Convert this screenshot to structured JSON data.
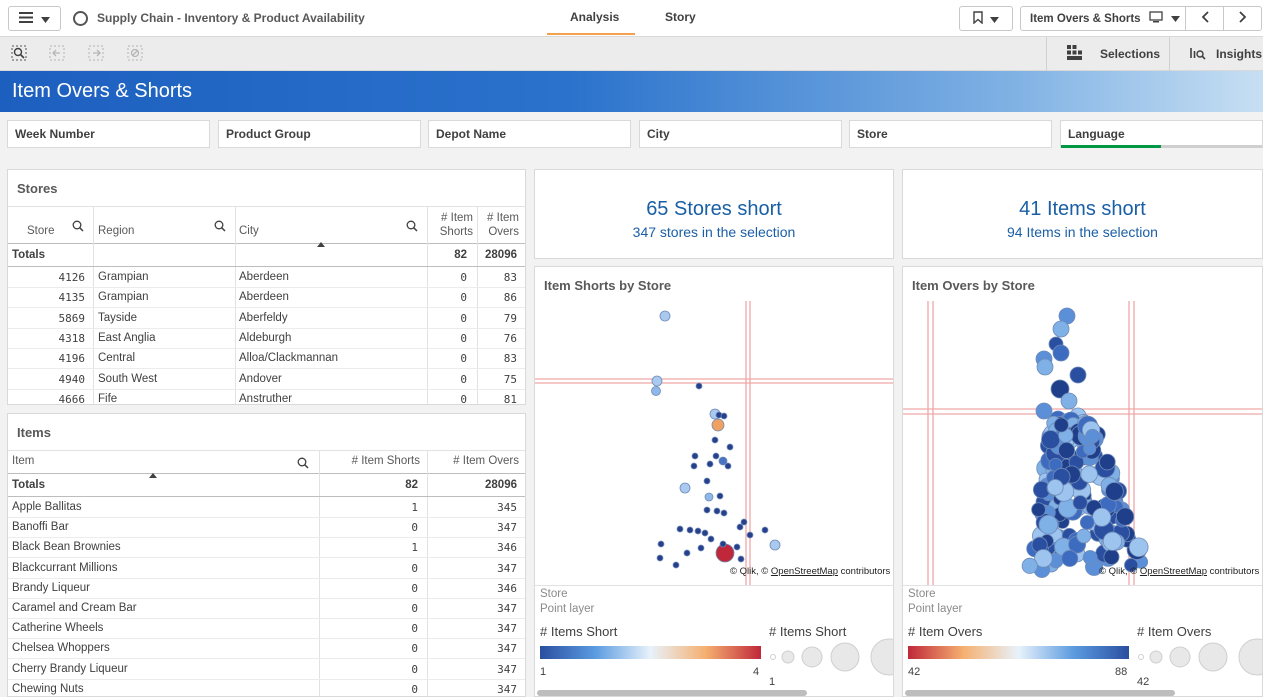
{
  "app": {
    "title": "Supply Chain - Inventory & Product Availability",
    "tabs": [
      "Analysis",
      "Story"
    ],
    "active_tab": "Analysis",
    "current_sheet": "Item Overs & Shorts"
  },
  "toolbar": {
    "selections_label": "Selections",
    "insights_label": "Insights"
  },
  "sheet": {
    "title": "Item Overs & Shorts"
  },
  "filters": [
    "Week Number",
    "Product Group",
    "Depot Name",
    "City",
    "Store",
    "Language"
  ],
  "stores_table": {
    "title": "Stores",
    "headers": {
      "store": "Store",
      "region": "Region",
      "city": "City",
      "shorts": "# Item Shorts",
      "overs": "# Item Overs"
    },
    "totals": {
      "label": "Totals",
      "shorts": "82",
      "overs": "28096"
    },
    "rows": [
      {
        "store": "4126",
        "region": "Grampian",
        "city": "Aberdeen",
        "shorts": "0",
        "overs": "83"
      },
      {
        "store": "4135",
        "region": "Grampian",
        "city": "Aberdeen",
        "shorts": "0",
        "overs": "86"
      },
      {
        "store": "5869",
        "region": "Tayside",
        "city": "Aberfeldy",
        "shorts": "0",
        "overs": "79"
      },
      {
        "store": "4318",
        "region": "East Anglia",
        "city": "Aldeburgh",
        "shorts": "0",
        "overs": "76"
      },
      {
        "store": "4196",
        "region": "Central",
        "city": "Alloa/Clackmannan",
        "shorts": "0",
        "overs": "83"
      },
      {
        "store": "4940",
        "region": "South West",
        "city": "Andover",
        "shorts": "0",
        "overs": "75"
      },
      {
        "store": "4666",
        "region": "Fife",
        "city": "Anstruther",
        "shorts": "0",
        "overs": "81"
      }
    ]
  },
  "items_table": {
    "title": "Items",
    "headers": {
      "item": "Item",
      "shorts": "# Item Shorts",
      "overs": "# Item Overs"
    },
    "totals": {
      "label": "Totals",
      "shorts": "82",
      "overs": "28096"
    },
    "rows": [
      {
        "item": "Apple Ballitas",
        "shorts": "1",
        "overs": "345"
      },
      {
        "item": "Banoffi Bar",
        "shorts": "0",
        "overs": "347"
      },
      {
        "item": "Black Bean Brownies",
        "shorts": "1",
        "overs": "346"
      },
      {
        "item": "Blackcurrant Millions",
        "shorts": "0",
        "overs": "347"
      },
      {
        "item": "Brandy Liqueur",
        "shorts": "0",
        "overs": "346"
      },
      {
        "item": "Caramel and Cream Bar",
        "shorts": "0",
        "overs": "347"
      },
      {
        "item": "Catherine Wheels",
        "shorts": "0",
        "overs": "347"
      },
      {
        "item": "Chelsea Whoppers",
        "shorts": "0",
        "overs": "347"
      },
      {
        "item": "Cherry Brandy Liqueur",
        "shorts": "0",
        "overs": "347"
      },
      {
        "item": "Chewing Nuts",
        "shorts": "0",
        "overs": "347"
      }
    ]
  },
  "kpi_stores": {
    "main": "65 Stores short",
    "sub": "347 stores in the selection"
  },
  "kpi_items": {
    "main": "41 Items short",
    "sub": "94 Items in the selection"
  },
  "map_shorts": {
    "title": "Item Shorts by Store",
    "copyright_prefix": "© Qlik, © ",
    "copyright_link": "OpenStreetMap",
    "copyright_suffix": " contributors",
    "layer_name": "Store",
    "layer_type": "Point layer",
    "color_legend_title": "# Items Short",
    "size_legend_title": "# Items Short",
    "color_min": "1",
    "color_max": "4",
    "size_min": "1",
    "gradient": [
      "#2a4fa0",
      "#5b9be0",
      "#e8f2fb",
      "#f5b070",
      "#c0283a"
    ]
  },
  "map_overs": {
    "title": "Item Overs by Store",
    "copyright_prefix": "© Qlik, © ",
    "copyright_link": "OpenStreetMap",
    "copyright_suffix": " contributors",
    "layer_name": "Store",
    "layer_type": "Point layer",
    "color_legend_title": "# Item Overs",
    "size_legend_title": "# Item Overs",
    "color_min": "42",
    "color_max": "88",
    "size_min": "42",
    "gradient": [
      "#c0283a",
      "#f5b070",
      "#e8f2fb",
      "#5b9be0",
      "#2a4fa0"
    ]
  }
}
